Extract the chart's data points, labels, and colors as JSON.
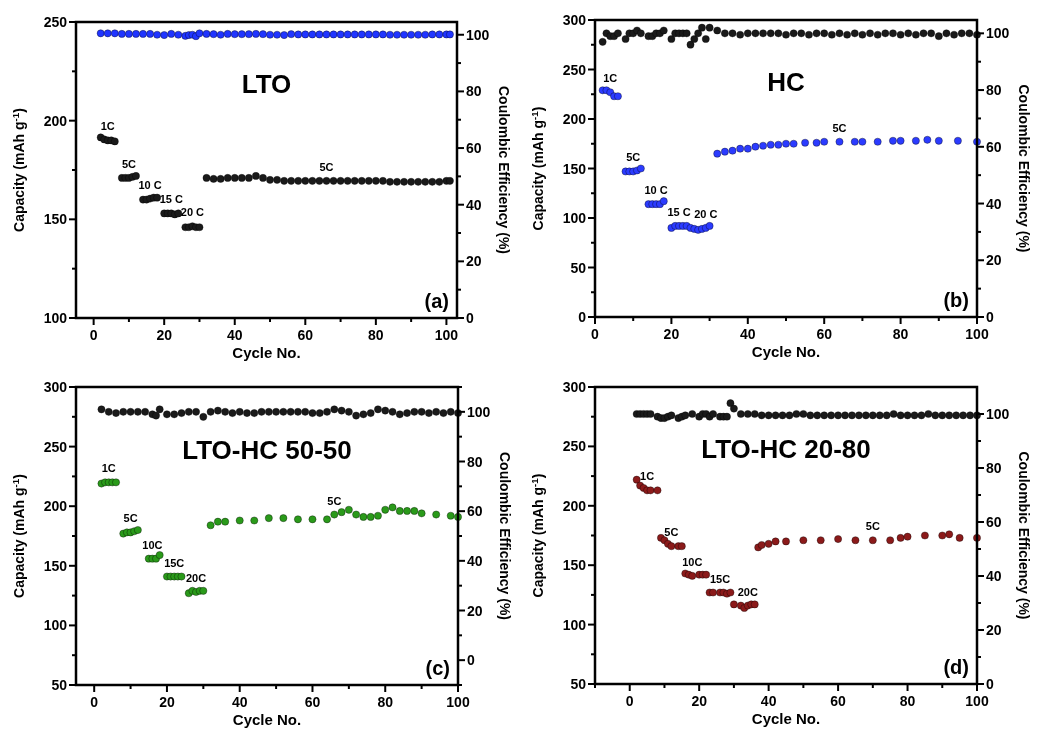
{
  "chart_data": [
    {
      "type": "scatter",
      "title": "LTO",
      "xlabel": "Cycle No.",
      "ylabel": "Capacity (mAh g$^{-1}$)",
      "y2label": "Coulombic Efficiency (%)",
      "marker": "circle",
      "xlim": [
        -5,
        103
      ],
      "xticks": [
        0,
        {
          "value": 10,
          "label": null
        },
        20,
        {
          "value": 30,
          "label": null
        },
        40,
        {
          "value": 50,
          "label": null
        },
        60,
        {
          "value": 70,
          "label": null
        },
        80,
        {
          "value": 90,
          "label": null
        },
        100
      ],
      "ylim": [
        100,
        250
      ],
      "yticks": [
        100,
        {
          "value": 125,
          "label": null
        },
        150,
        {
          "value": 175,
          "label": null
        },
        200,
        {
          "value": 225,
          "label": null
        },
        250
      ],
      "y2lim": [
        0,
        104.5
      ],
      "y2ticks": [
        0,
        {
          "value": 10,
          "label": null
        },
        20,
        {
          "value": 30,
          "label": null
        },
        40,
        {
          "value": 50,
          "label": null
        },
        60,
        {
          "value": 70,
          "label": null
        },
        80,
        {
          "value": 90,
          "label": null
        },
        100
      ],
      "annotations": [
        {
          "text": "1C",
          "x": 4,
          "y": 190
        },
        {
          "text": "5C",
          "x": 10,
          "y": 171
        },
        {
          "text": "10 C",
          "x": 16,
          "y": 160.5
        },
        {
          "text": "15 C",
          "x": 22,
          "y": 153
        },
        {
          "text": "20 C",
          "x": 28,
          "y": 146.5
        },
        {
          "text": "5C",
          "x": 66,
          "y": 169.5
        },
        "(a)"
      ],
      "series": [
        {
          "color": "#1a1a1a",
          "x": [
            2,
            3,
            4,
            5,
            6,
            8,
            9,
            10,
            11,
            12,
            14,
            15,
            16,
            17,
            18,
            20,
            21,
            22,
            23,
            24,
            26,
            27,
            28,
            29,
            30,
            32,
            34,
            36,
            38,
            40,
            42,
            44,
            46,
            48,
            50,
            52,
            54,
            56,
            58,
            60,
            62,
            64,
            66,
            68,
            70,
            72,
            74,
            76,
            78,
            80,
            82,
            84,
            86,
            88,
            90,
            92,
            94,
            96,
            98,
            100,
            101
          ],
          "values": [
            191.5,
            190.5,
            190,
            190,
            189.5,
            171,
            171,
            171,
            171.5,
            172,
            160,
            160,
            160.5,
            161,
            161,
            153,
            153,
            153,
            152.5,
            153,
            146,
            146,
            146.5,
            146,
            146,
            171,
            170.5,
            170.5,
            171,
            171,
            171,
            171,
            172,
            171,
            170,
            170,
            169.5,
            169.5,
            169.5,
            169.5,
            169.5,
            169.5,
            169.5,
            169.5,
            169.5,
            169.5,
            169.5,
            169.5,
            169.5,
            169.5,
            169.5,
            169,
            169,
            169,
            169,
            169,
            169,
            169,
            169,
            169.5,
            169.5
          ]
        },
        {
          "color": "#2035ff",
          "axis": "y2",
          "x": [
            2,
            4,
            6,
            8,
            10,
            12,
            14,
            16,
            18,
            20,
            22,
            24,
            26,
            27,
            28,
            29,
            30,
            32,
            34,
            36,
            38,
            40,
            42,
            44,
            46,
            48,
            50,
            52,
            54,
            56,
            58,
            60,
            62,
            64,
            66,
            68,
            70,
            72,
            74,
            76,
            78,
            80,
            82,
            84,
            86,
            88,
            90,
            92,
            94,
            96,
            98,
            100,
            101
          ],
          "values": [
            100.5,
            100.5,
            100.5,
            100.3,
            100.3,
            100.3,
            100.3,
            100.3,
            100,
            99.9,
            100.3,
            100,
            99.6,
            99.9,
            100,
            99.5,
            100.5,
            100.3,
            100.2,
            100,
            100.3,
            100.2,
            100.2,
            100.2,
            100.3,
            100.2,
            100,
            100,
            99.9,
            100.2,
            100.1,
            100.1,
            100.1,
            100.1,
            100.1,
            100.1,
            100.1,
            100.1,
            100.1,
            100.1,
            100.1,
            100.1,
            100.1,
            100,
            100,
            100,
            100,
            100,
            100,
            100.1,
            100.1,
            100.1,
            100.1
          ]
        }
      ]
    },
    {
      "type": "scatter",
      "title": "HC",
      "xlabel": "Cycle No.",
      "ylabel": "Capacity (mAh g$^{-1}$)",
      "y2label": "Coulombic Efficiency (%)",
      "marker": "circle",
      "xlim": [
        0,
        100
      ],
      "xticks": [
        0,
        {
          "value": 10,
          "label": null
        },
        20,
        {
          "value": 30,
          "label": null
        },
        40,
        {
          "value": 50,
          "label": null
        },
        60,
        {
          "value": 70,
          "label": null
        },
        80,
        {
          "value": 90,
          "label": null
        },
        100
      ],
      "ylim": [
        0,
        300
      ],
      "yticks": [
        0,
        {
          "value": 25,
          "label": null
        },
        50,
        {
          "value": 75,
          "label": null
        },
        100,
        {
          "value": 125,
          "label": null
        },
        150,
        {
          "value": 175,
          "label": null
        },
        200,
        {
          "value": 225,
          "label": null
        },
        250,
        {
          "value": 275,
          "label": null
        },
        300
      ],
      "y2lim": [
        0,
        104.7
      ],
      "y2ticks": [
        0,
        {
          "value": 10,
          "label": null
        },
        20,
        {
          "value": 30,
          "label": null
        },
        40,
        {
          "value": 50,
          "label": null
        },
        60,
        {
          "value": 70,
          "label": null
        },
        80,
        {
          "value": 90,
          "label": null
        },
        100
      ],
      "annotations": [
        {
          "text": "1C",
          "x": 4,
          "y": 227
        },
        {
          "text": "5C",
          "x": 10,
          "y": 147
        },
        {
          "text": "10 C",
          "x": 16,
          "y": 114
        },
        {
          "text": "15 C",
          "x": 22,
          "y": 92
        },
        {
          "text": "20 C",
          "x": 29,
          "y": 90
        },
        {
          "text": "5C",
          "x": 64,
          "y": 177
        },
        "(b)"
      ],
      "series": [
        {
          "color": "#2b3bff",
          "x": [
            2,
            3,
            4,
            5,
            6,
            8,
            9,
            10,
            11,
            12,
            14,
            15,
            16,
            17,
            18,
            20,
            21,
            22,
            23,
            24,
            25,
            26,
            27,
            28,
            29,
            30,
            32,
            34,
            36,
            38,
            40,
            42,
            44,
            46,
            48,
            50,
            52,
            55,
            58,
            60,
            64,
            68,
            70,
            74,
            78,
            80,
            84,
            87,
            90,
            95,
            100
          ],
          "values": [
            229,
            229,
            227,
            223,
            223,
            147,
            147,
            147,
            148,
            150,
            114,
            114,
            114,
            114,
            117,
            90,
            92,
            92,
            92,
            92,
            90,
            89,
            88,
            89,
            90,
            92,
            165,
            167,
            168,
            170,
            170,
            172,
            173,
            174,
            174,
            175,
            175,
            176,
            176,
            177,
            177,
            177,
            177,
            177,
            178,
            178,
            178,
            179,
            178,
            178,
            177
          ]
        },
        {
          "color": "#1a1a1a",
          "axis": "y2",
          "x": [
            2,
            3,
            4,
            5,
            6,
            8,
            9,
            10,
            11,
            12,
            14,
            15,
            16,
            17,
            18,
            20,
            21,
            22,
            23,
            24,
            25,
            26,
            27,
            28,
            29,
            30,
            32,
            34,
            36,
            38,
            40,
            42,
            44,
            46,
            48,
            50,
            52,
            54,
            56,
            58,
            60,
            62,
            64,
            66,
            68,
            70,
            72,
            74,
            76,
            78,
            80,
            82,
            84,
            86,
            88,
            90,
            92,
            94,
            96,
            98,
            100
          ],
          "values": [
            97,
            100,
            99,
            99,
            100,
            98,
            100,
            100,
            101,
            100,
            99,
            99,
            100,
            100,
            101,
            98,
            100,
            100,
            100,
            100,
            96,
            98,
            100,
            102,
            98,
            102,
            101,
            100,
            100,
            99.5,
            100,
            100,
            100,
            100,
            100,
            99.5,
            100,
            100,
            99.5,
            100,
            100,
            99.5,
            100,
            99.5,
            100,
            99.5,
            100,
            99.5,
            100,
            100,
            99.5,
            100,
            99.5,
            100,
            100,
            99,
            100,
            99.5,
            100,
            100,
            99.5
          ]
        }
      ]
    },
    {
      "type": "scatter",
      "title": "LTO-HC 50-50",
      "xlabel": "Cycle No.",
      "ylabel": "Capacity (mAh g$^{-1}$)",
      "y2label": "Coulombic Efficiency (%)",
      "marker": "circle",
      "xlim": [
        -5,
        100
      ],
      "xticks": [
        0,
        {
          "value": 10,
          "label": null
        },
        20,
        {
          "value": 30,
          "label": null
        },
        40,
        {
          "value": 50,
          "label": null
        },
        60,
        {
          "value": 70,
          "label": null
        },
        80,
        {
          "value": 90,
          "label": null
        },
        100
      ],
      "ylim": [
        50,
        300
      ],
      "yticks": [
        50,
        {
          "value": 75,
          "label": null
        },
        100,
        {
          "value": 125,
          "label": null
        },
        150,
        {
          "value": 175,
          "label": null
        },
        200,
        {
          "value": 225,
          "label": null
        },
        250,
        {
          "value": 275,
          "label": null
        },
        300
      ],
      "y2lim": [
        -10,
        110
      ],
      "y2ticks": [
        {
          "value": -10,
          "label": null
        },
        0,
        {
          "value": 10,
          "label": null
        },
        20,
        {
          "value": 30,
          "label": null
        },
        40,
        {
          "value": 50,
          "label": null
        },
        60,
        {
          "value": 70,
          "label": null
        },
        80,
        {
          "value": 90,
          "label": null
        },
        100,
        {
          "value": 110,
          "label": null
        }
      ],
      "annotations": [
        {
          "text": "1C",
          "x": 4,
          "y": 220
        },
        {
          "text": "5C",
          "x": 10,
          "y": 178
        },
        {
          "text": "10C",
          "x": 16,
          "y": 156
        },
        {
          "text": "15C",
          "x": 22,
          "y": 141
        },
        {
          "text": "20C",
          "x": 28,
          "y": 128
        },
        {
          "text": "5C",
          "x": 66,
          "y": 193
        },
        "(c)"
      ],
      "series": [
        {
          "color": "#2a9a1a",
          "x": [
            2,
            3,
            4,
            5,
            6,
            8,
            9,
            10,
            11,
            12,
            15,
            16,
            17,
            18,
            20,
            21,
            22,
            23,
            24,
            26,
            27,
            28,
            29,
            30,
            32,
            34,
            36,
            40,
            44,
            48,
            52,
            56,
            60,
            64,
            66,
            68,
            70,
            72,
            74,
            76,
            78,
            80,
            82,
            84,
            86,
            88,
            90,
            94,
            98,
            100
          ],
          "values": [
            219,
            220,
            220,
            220,
            220,
            177,
            178,
            178,
            179,
            180,
            156,
            156,
            156,
            159,
            141,
            141,
            141,
            141,
            141,
            127,
            129,
            128,
            129,
            129,
            184,
            187,
            187,
            188,
            188,
            190,
            190,
            189,
            189,
            189,
            193,
            195,
            197,
            193,
            191,
            191,
            192,
            197,
            199,
            196,
            196,
            196,
            194,
            193,
            192,
            191
          ]
        },
        {
          "color": "#1a1a1a",
          "axis": "y2",
          "x": [
            2,
            4,
            6,
            8,
            10,
            12,
            14,
            16,
            17,
            18,
            20,
            22,
            24,
            26,
            28,
            30,
            32,
            34,
            36,
            38,
            40,
            42,
            44,
            46,
            48,
            50,
            52,
            54,
            56,
            58,
            60,
            62,
            64,
            66,
            68,
            70,
            72,
            74,
            76,
            78,
            80,
            82,
            84,
            86,
            88,
            90,
            92,
            94,
            96,
            98,
            100
          ],
          "values": [
            101,
            100,
            99.5,
            100,
            100,
            100,
            100,
            99,
            98.5,
            101,
            99,
            99,
            99.5,
            100,
            100,
            98,
            100,
            100.5,
            100,
            99.5,
            100,
            99.5,
            99.5,
            100,
            100,
            100,
            100,
            100,
            100,
            100,
            99.5,
            99.5,
            100,
            101,
            100.5,
            100,
            98.5,
            99,
            99.5,
            101,
            100.5,
            100,
            99,
            99.5,
            100,
            100,
            99.5,
            100,
            99.5,
            100,
            99.5
          ]
        }
      ]
    },
    {
      "type": "scatter",
      "title": "LTO-HC 20-80",
      "xlabel": "Cycle No.",
      "ylabel": "Capacity (mAh g$^{-1}$)",
      "y2label": "Coulombic Efficiency (%)",
      "marker": "circle",
      "xlim": [
        -10,
        100
      ],
      "xticks": [
        {
          "value": -10,
          "label": null
        },
        0,
        {
          "value": 10,
          "label": null
        },
        20,
        {
          "value": 30,
          "label": null
        },
        40,
        {
          "value": 50,
          "label": null
        },
        60,
        {
          "value": 70,
          "label": null
        },
        80,
        {
          "value": 90,
          "label": null
        },
        100
      ],
      "ylim": [
        50,
        300
      ],
      "yticks": [
        50,
        {
          "value": 75,
          "label": null
        },
        100,
        {
          "value": 125,
          "label": null
        },
        150,
        {
          "value": 175,
          "label": null
        },
        200,
        {
          "value": 225,
          "label": null
        },
        250,
        {
          "value": 275,
          "label": null
        },
        300
      ],
      "y2lim": [
        0,
        110
      ],
      "y2ticks": [
        0,
        {
          "value": 10,
          "label": null
        },
        20,
        {
          "value": 30,
          "label": null
        },
        40,
        {
          "value": 50,
          "label": null
        },
        60,
        {
          "value": 70,
          "label": null
        },
        80,
        {
          "value": 90,
          "label": null
        },
        100
      ],
      "annotations": [
        {
          "text": "1C",
          "x": 5,
          "y": 213
        },
        {
          "text": "5C",
          "x": 12,
          "y": 166
        },
        {
          "text": "10C",
          "x": 18,
          "y": 141
        },
        {
          "text": "15C",
          "x": 26,
          "y": 127
        },
        {
          "text": "20C",
          "x": 34,
          "y": 116
        },
        {
          "text": "5C",
          "x": 70,
          "y": 171
        },
        "(d)"
      ],
      "series": [
        {
          "color": "#8b1a1a",
          "x": [
            2,
            3,
            4,
            5,
            6,
            8,
            9,
            10,
            11,
            12,
            14,
            15,
            16,
            17,
            18,
            20,
            21,
            22,
            23,
            24,
            26,
            27,
            28,
            29,
            30,
            32,
            33,
            34,
            35,
            36,
            37,
            38,
            40,
            42,
            45,
            50,
            55,
            60,
            65,
            70,
            75,
            78,
            80,
            85,
            90,
            92,
            95,
            100
          ],
          "values": [
            222,
            217,
            215,
            213,
            213,
            213,
            173,
            171,
            168,
            166,
            166,
            166,
            143,
            142,
            141,
            142,
            142,
            142,
            127,
            127,
            127,
            127,
            126,
            127,
            117,
            116,
            114,
            116,
            117,
            117,
            165,
            167,
            168,
            170,
            170,
            171,
            171,
            172,
            171,
            171,
            171,
            173,
            174,
            175,
            175,
            176,
            173,
            173
          ]
        },
        {
          "color": "#1a1a1a",
          "axis": "y2",
          "x": [
            2,
            3,
            4,
            5,
            6,
            8,
            9,
            10,
            11,
            12,
            14,
            15,
            16,
            18,
            20,
            21,
            22,
            23,
            24,
            26,
            27,
            28,
            29,
            30,
            32,
            34,
            36,
            38,
            40,
            42,
            44,
            46,
            48,
            50,
            52,
            54,
            56,
            58,
            60,
            62,
            64,
            66,
            68,
            70,
            72,
            74,
            76,
            78,
            80,
            82,
            84,
            86,
            88,
            90,
            92,
            94,
            96,
            98,
            100
          ],
          "values": [
            100,
            100,
            100,
            100,
            100,
            99,
            98.5,
            98.5,
            99,
            99.5,
            98.5,
            99,
            99.5,
            100,
            99,
            100,
            100,
            99,
            100,
            99,
            99,
            99,
            104,
            102,
            100,
            100,
            100,
            99.5,
            99.5,
            99.5,
            99.5,
            99.5,
            100,
            100,
            99.5,
            99.5,
            99.5,
            99.5,
            99.5,
            99.5,
            99.5,
            99.5,
            99.5,
            99.5,
            99.5,
            99.5,
            100,
            99.5,
            99.5,
            99.5,
            99.5,
            100,
            99.5,
            99.5,
            99.5,
            99.5,
            99.5,
            99.5,
            99.5
          ]
        }
      ]
    }
  ]
}
